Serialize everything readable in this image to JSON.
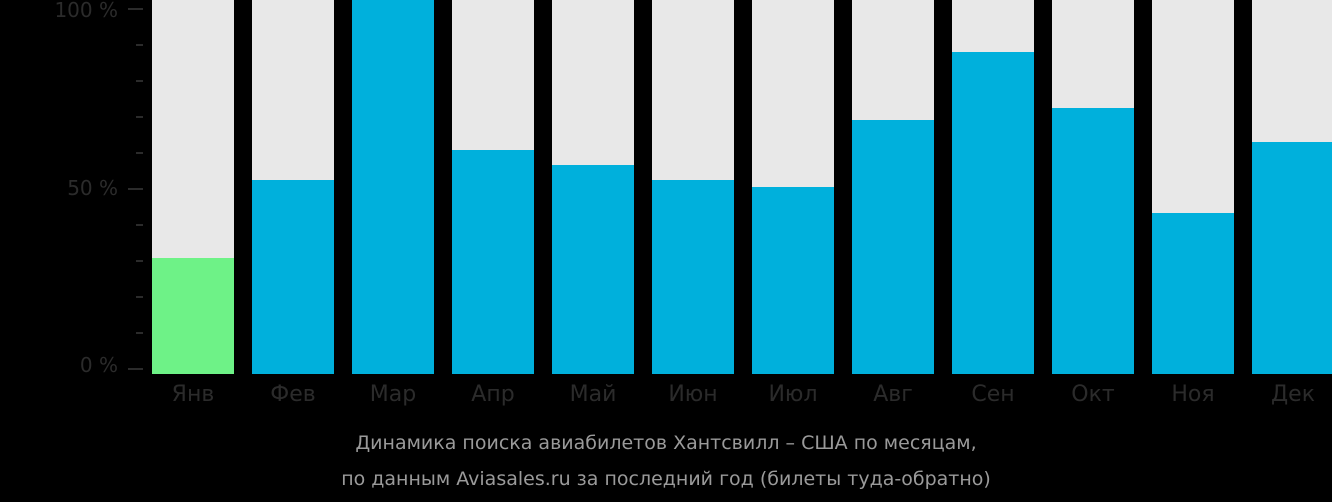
{
  "chart_data": {
    "type": "bar",
    "title": "Динамика поиска авиабилетов Хантсвилл – США по месяцам,",
    "subtitle": "по данным Aviasales.ru за последний год (билеты туда-обратно)",
    "categories": [
      "Янв",
      "Фев",
      "Мар",
      "Апр",
      "Май",
      "Июн",
      "Июл",
      "Авг",
      "Сен",
      "Окт",
      "Ноя",
      "Дек"
    ],
    "values": [
      31,
      52,
      100,
      60,
      56,
      52,
      50,
      68,
      86,
      71,
      43,
      62
    ],
    "highlight_index": 0,
    "xlabel": "",
    "ylabel": "",
    "ylim": [
      0,
      100
    ],
    "yticks": [
      "100 %",
      "50 %",
      "0 %"
    ],
    "colors": {
      "bar": "#00b0dc",
      "highlight": "#6ef287",
      "background_bar": "#e8e8e8"
    }
  },
  "caption": {
    "line1": "Динамика поиска авиабилетов Хантсвилл – США по месяцам,",
    "line2": "по данным Aviasales.ru за последний год (билеты туда-обратно)"
  }
}
